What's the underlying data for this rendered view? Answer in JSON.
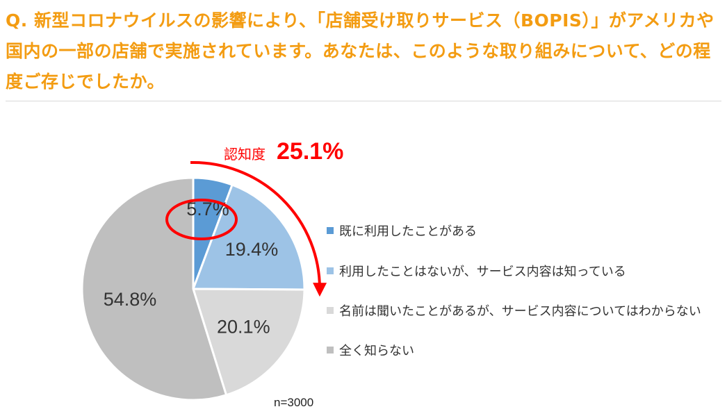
{
  "question": "Q. 新型コロナウイルスの影響により、「店舗受け取りサービス（BOPIS）」がアメリカや国内の一部の店舗で実施されています。あなたは、このような取り組みについて、どの程度ご存じでしたか。",
  "colors": {
    "question": "#f39c12",
    "highlight": "#ff0000",
    "slice_1": "#5b9bd5",
    "slice_2": "#9dc3e6",
    "slice_3": "#d9d9d9",
    "slice_4": "#bfbfbf"
  },
  "callout": {
    "label": "認知度",
    "value": "25.1%"
  },
  "chart_data": {
    "type": "pie",
    "sample_size": "n=3000",
    "legend_position": "right",
    "categories": [
      "既に利用したことがある",
      "利用したことはないが、サービス内容は知っている",
      "名前は聞いたことがあるが、サービス内容についてはわからない",
      "全く知らない"
    ],
    "values": [
      5.7,
      19.4,
      20.1,
      54.8
    ],
    "labels": [
      "5.7%",
      "19.4%",
      "20.1%",
      "54.8%"
    ]
  }
}
